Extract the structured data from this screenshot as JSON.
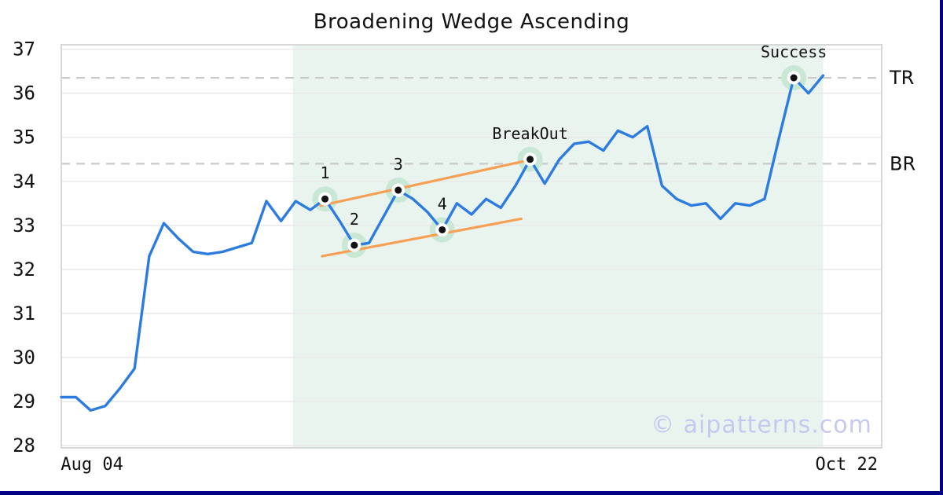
{
  "page": {
    "watermark": "© aipatterns.com",
    "watermark_color": "#c6c8ef",
    "frame_color": "#000080",
    "background": "#ffffff",
    "text_color": "#111111"
  },
  "chart_data": {
    "type": "line",
    "title": "Broadening Wedge Ascending",
    "xlabel": "",
    "ylabel": "",
    "grid": "horizontal",
    "grid_color": "#e8e8e8",
    "border_color": "#d8d8d8",
    "ylim": [
      27.95,
      37.1
    ],
    "xlim_index": [
      0,
      56
    ],
    "y_ticks": [
      28,
      29,
      30,
      31,
      32,
      33,
      34,
      35,
      36,
      37
    ],
    "x_ticks": [
      {
        "label": "Aug 04",
        "index": 2.1
      },
      {
        "label": "Oct 22",
        "index": 53.6
      }
    ],
    "series": {
      "name": "price",
      "color": "#2c7be0",
      "values": [
        29.1,
        29.1,
        28.8,
        28.9,
        29.3,
        29.75,
        32.3,
        33.05,
        32.7,
        32.4,
        32.35,
        32.4,
        32.5,
        32.6,
        33.55,
        33.1,
        33.55,
        33.35,
        33.6,
        33.1,
        32.55,
        32.6,
        33.2,
        33.8,
        33.6,
        33.3,
        32.9,
        33.5,
        33.25,
        33.6,
        33.4,
        33.9,
        34.5,
        33.95,
        34.5,
        34.85,
        34.9,
        34.7,
        35.15,
        35.0,
        35.25,
        33.9,
        33.6,
        33.45,
        33.5,
        33.15,
        33.5,
        33.45,
        33.6,
        35.0,
        36.35,
        36.0,
        36.4
      ]
    },
    "pattern_region": {
      "start_index": 15.8,
      "end_index": 52,
      "color": "#eaf4ef"
    },
    "levels": {
      "color": "#c9c9c9",
      "items": [
        {
          "label": "TR",
          "value": 36.35
        },
        {
          "label": "BR",
          "value": 34.4
        }
      ]
    },
    "trendlines": {
      "color": "#f5a054",
      "items": [
        {
          "name": "upper",
          "x1": 17.7,
          "y1": 33.45,
          "x2": 31.5,
          "y2": 34.45
        },
        {
          "name": "lower",
          "x1": 17.8,
          "y1": 32.3,
          "x2": 31.4,
          "y2": 33.15
        }
      ]
    },
    "markers": {
      "outer_color": "#c9e7d5",
      "ring_color": "#ffffff",
      "dot_color": "#111111",
      "items": [
        {
          "label": "1",
          "index": 18,
          "value": 33.6
        },
        {
          "label": "2",
          "index": 20,
          "value": 32.55
        },
        {
          "label": "3",
          "index": 23,
          "value": 33.8
        },
        {
          "label": "4",
          "index": 26,
          "value": 32.9
        },
        {
          "label": "BreakOut",
          "index": 32,
          "value": 34.5
        },
        {
          "label": "Success",
          "index": 50,
          "value": 36.35
        }
      ]
    }
  }
}
